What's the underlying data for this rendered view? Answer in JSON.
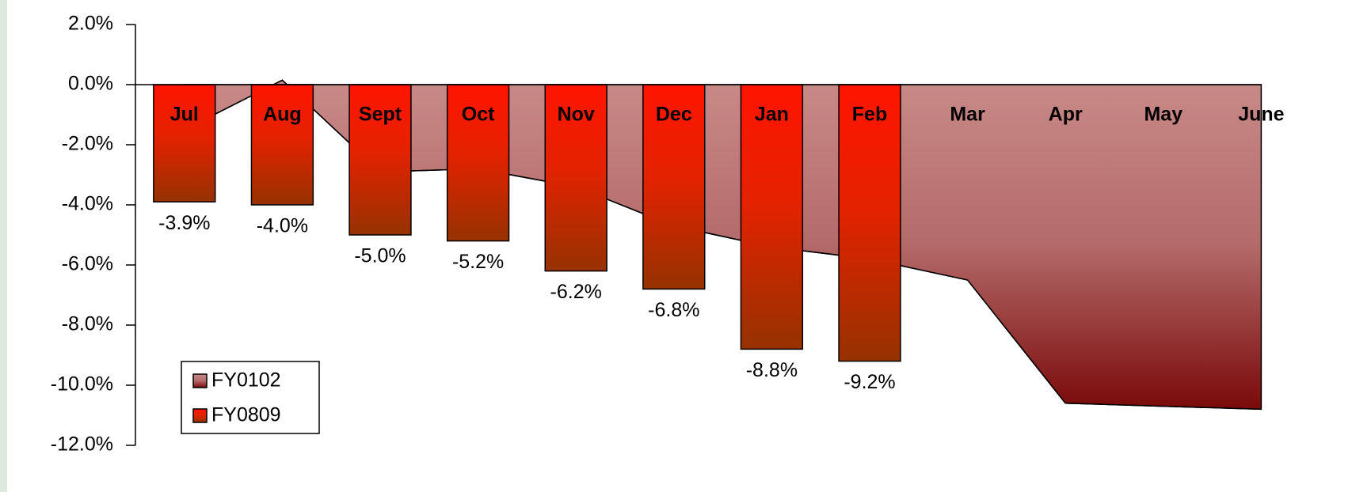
{
  "chart_data": {
    "type": "bar",
    "categories": [
      "Jul",
      "Aug",
      "Sept",
      "Oct",
      "Nov",
      "Dec",
      "Jan",
      "Feb",
      "Mar",
      "Apr",
      "May",
      "June"
    ],
    "series": [
      {
        "name": "FY0102",
        "type": "area",
        "color": "#8b2a2a",
        "values": [
          -1.5,
          0.15,
          -2.9,
          -2.8,
          -3.4,
          -4.7,
          -5.4,
          -5.8,
          -6.5,
          -10.6,
          -10.7,
          -10.8
        ]
      },
      {
        "name": "FY0809",
        "type": "bar",
        "color": "#ff1a00",
        "values": [
          -3.9,
          -4.0,
          -5.0,
          -5.2,
          -6.2,
          -6.8,
          -8.8,
          -9.2,
          null,
          null,
          null,
          null
        ],
        "value_labels": [
          "-3.9%",
          "-4.0%",
          "-5.0%",
          "-5.2%",
          "-6.2%",
          "-6.8%",
          "-8.8%",
          "-9.2%",
          null,
          null,
          null,
          null
        ]
      }
    ],
    "ylim": [
      -12,
      2
    ],
    "yticks": [
      {
        "value": 2,
        "label": "2.0%"
      },
      {
        "value": 0,
        "label": "0.0%"
      },
      {
        "value": -2,
        "label": "-2.0%"
      },
      {
        "value": -4,
        "label": "-4.0%"
      },
      {
        "value": -6,
        "label": "-6.0%"
      },
      {
        "value": -8,
        "label": "-8.0%"
      },
      {
        "value": -10,
        "label": "-10.0%"
      },
      {
        "value": -12,
        "label": "-12.0%"
      }
    ],
    "grid": false,
    "legend": "lower left"
  }
}
